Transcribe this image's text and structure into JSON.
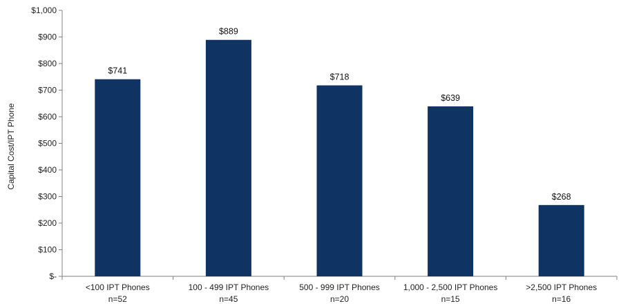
{
  "chart_data": {
    "type": "bar",
    "categories": [
      {
        "line1": "<100 IPT Phones",
        "line2": "n=52"
      },
      {
        "line1": "100 - 499 IPT Phones",
        "line2": "n=45"
      },
      {
        "line1": "500 - 999 IPT Phones",
        "line2": "n=20"
      },
      {
        "line1": "1,000 - 2,500 IPT Phones",
        "line2": "n=15"
      },
      {
        "line1": ">2,500 IPT Phones",
        "line2": "n=16"
      }
    ],
    "values": [
      741,
      889,
      718,
      639,
      268
    ],
    "data_labels": [
      "$741",
      "$889",
      "$718",
      "$639",
      "$268"
    ],
    "ylabel": "Capital Cost/IPT Phone",
    "ylim": [
      0,
      1000
    ],
    "yticks": [
      {
        "value": 0,
        "label": "$-"
      },
      {
        "value": 100,
        "label": "$100"
      },
      {
        "value": 200,
        "label": "$200"
      },
      {
        "value": 300,
        "label": "$300"
      },
      {
        "value": 400,
        "label": "$400"
      },
      {
        "value": 500,
        "label": "$500"
      },
      {
        "value": 600,
        "label": "$600"
      },
      {
        "value": 700,
        "label": "$700"
      },
      {
        "value": 800,
        "label": "$800"
      },
      {
        "value": 900,
        "label": "$900"
      },
      {
        "value": 1000,
        "label": "$1,000"
      }
    ],
    "bar_color": "#0f3363",
    "axis_color": "#7f7f7f",
    "grid": false,
    "legend": "none"
  }
}
